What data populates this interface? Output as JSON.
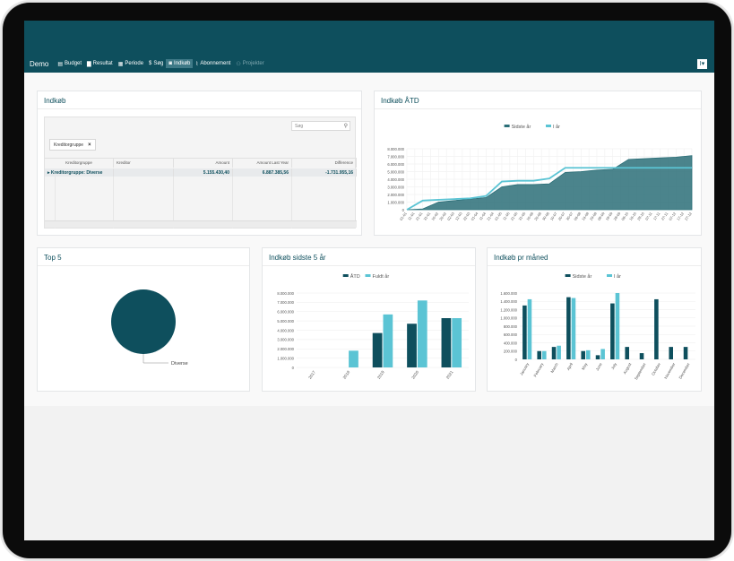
{
  "nav": {
    "brand": "Demo",
    "items": [
      {
        "label": "Budget",
        "icon": "▤"
      },
      {
        "label": "Resultat",
        "icon": "▇"
      },
      {
        "label": "Periode",
        "icon": "▦"
      },
      {
        "label": "Søg",
        "icon": "$"
      },
      {
        "label": "Indkøb",
        "icon": "◙"
      },
      {
        "label": "Abonnement",
        "icon": "⌇"
      },
      {
        "label": "Projekter",
        "icon": "⚇"
      }
    ],
    "active": "Indkøb",
    "user_icon": "I▾"
  },
  "pivot": {
    "title": "Indkøb",
    "search_placeholder": "Søg",
    "chip_label": "Kreditorgruppe",
    "chip_close": "×",
    "columns": [
      "Kreditorgruppe",
      "Kreditor",
      "Amount",
      "Amount Last Year",
      "Difference"
    ],
    "row": {
      "toggle": "▸",
      "label": "Kreditorgruppe: Diverse",
      "kreditor": "",
      "amount": "5.155.430,40",
      "amount_last_year": "6.887.385,56",
      "difference": "-1.731.955,16"
    }
  },
  "charts": {
    "atd": {
      "title": "Indkøb ÅTD",
      "chart_data": {
        "type": "area",
        "series": [
          {
            "name": "Sidste år",
            "color": "#2b6f78",
            "values": [
              0,
              100000,
              1000000,
              1200000,
              1400000,
              1600000,
              3000000,
              3300000,
              3300000,
              3400000,
              4900000,
              5000000,
              5200000,
              5300000,
              6600000,
              6700000,
              6800000,
              6900000,
              7100000
            ]
          },
          {
            "name": "I år",
            "color": "#5bc4d4",
            "values": [
              0,
              1200000,
              1300000,
              1400000,
              1500000,
              1800000,
              3700000,
              3800000,
              3800000,
              4100000,
              5500000,
              5500000,
              5500000,
              5500000,
              5500000,
              5500000,
              5500000,
              5500000,
              5500000
            ]
          }
        ],
        "x_labels": [
          "01-01",
          "11-01",
          "21-01",
          "31-01",
          "10-02",
          "20-02",
          "02-03",
          "12-03",
          "22-03",
          "01-04",
          "11-04",
          "21-04",
          "01-05",
          "11-05",
          "21-05",
          "31-05",
          "10-06",
          "20-06",
          "30-06",
          "10-07",
          "20-07",
          "30-07",
          "09-08",
          "19-08",
          "29-08",
          "08-09",
          "18-09",
          "28-09",
          "08-10",
          "18-10",
          "28-10",
          "07-11",
          "17-11",
          "27-11",
          "07-12",
          "17-12",
          "27-12"
        ],
        "y_ticks": [
          "0",
          "1.000.000",
          "2.000.000",
          "3.000.000",
          "4.000.000",
          "5.000.000",
          "6.000.000",
          "7.000.000",
          "8.000.000"
        ],
        "ylim": [
          0,
          8000000
        ],
        "legend": "top"
      }
    },
    "top5": {
      "title": "Top 5",
      "chart_data": {
        "type": "pie",
        "slices": [
          {
            "label": "Diverse",
            "value": 100,
            "color": "#0e4f5d"
          }
        ]
      }
    },
    "five_years": {
      "title": "Indkøb sidste 5 år",
      "chart_data": {
        "type": "bar",
        "categories": [
          "2017",
          "2018",
          "2019",
          "2020",
          "2021"
        ],
        "series": [
          {
            "name": "ÅTD",
            "color": "#0e4f5d",
            "values": [
              0,
              0,
              3700000,
              4700000,
              5300000
            ]
          },
          {
            "name": "Fuldt år",
            "color": "#5bc4d4",
            "values": [
              0,
              1800000,
              5700000,
              7200000,
              5300000
            ]
          }
        ],
        "y_ticks": [
          "0",
          "1.000.000",
          "2.000.000",
          "3.000.000",
          "4.000.000",
          "5.000.000",
          "6.000.000",
          "7.000.000",
          "8.000.000"
        ],
        "ylim": [
          0,
          8000000
        ],
        "legend": "top"
      }
    },
    "monthly": {
      "title": "Indkøb pr måned",
      "chart_data": {
        "type": "bar",
        "categories": [
          "January",
          "February",
          "March",
          "April",
          "May",
          "June",
          "July",
          "August",
          "September",
          "October",
          "November",
          "December"
        ],
        "series": [
          {
            "name": "Sidste år",
            "color": "#0e4f5d",
            "values": [
              1300000,
              200000,
              300000,
              1500000,
              200000,
              100000,
              1350000,
              300000,
              150000,
              1450000,
              300000,
              300000
            ]
          },
          {
            "name": "I år",
            "color": "#5bc4d4",
            "values": [
              1450000,
              200000,
              330000,
              1480000,
              220000,
              250000,
              1600000,
              0,
              0,
              0,
              0,
              0
            ]
          }
        ],
        "y_ticks": [
          "0",
          "200.000",
          "400.000",
          "600.000",
          "800.000",
          "1.000.000",
          "1.200.000",
          "1.400.000",
          "1.600.000"
        ],
        "ylim": [
          0,
          1600000
        ],
        "legend": "top"
      }
    }
  }
}
